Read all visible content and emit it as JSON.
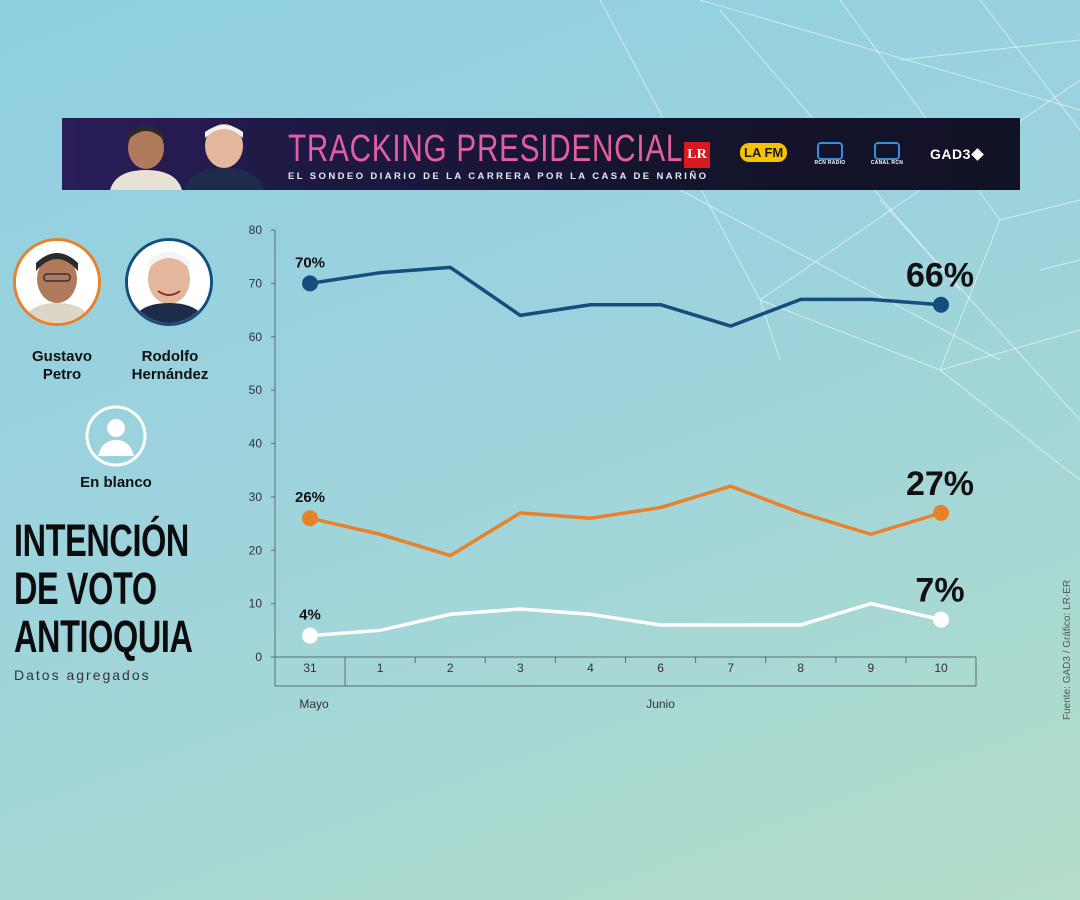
{
  "banner": {
    "title": "TRACKING PRESIDENCIAL",
    "subtitle": "EL SONDEO DIARIO DE LA CARRERA POR LA CASA DE NARIÑO",
    "logos": [
      {
        "name": "lr-logo",
        "text": "LR"
      },
      {
        "name": "lafm-logo",
        "text": "LA FM"
      },
      {
        "name": "rcn-radio-logo",
        "text": "RCN RADIO"
      },
      {
        "name": "canal-rcn-logo",
        "text": "CANAL RCN"
      },
      {
        "name": "gad3-logo",
        "text": "GAD3"
      }
    ]
  },
  "legend": {
    "petro": {
      "name": "Gustavo\nPetro",
      "color": "#e8812a"
    },
    "hernandez": {
      "name": "Rodolfo\nHernández",
      "color": "#154d7c"
    },
    "blanco": {
      "name": "En blanco",
      "color": "#ffffff"
    }
  },
  "heading": {
    "line1": "INTENCIÓN",
    "line2": "DE VOTO",
    "line3": "ANTIOQUIA",
    "sub": "Datos agregados"
  },
  "source": "Fuente: GAD3 / Gráfico: LR-ER",
  "chart_data": {
    "type": "line",
    "categories": [
      "31",
      "1",
      "2",
      "3",
      "4",
      "6",
      "7",
      "8",
      "9",
      "10"
    ],
    "month_labels": [
      {
        "label": "Mayo",
        "span": [
          0,
          0
        ]
      },
      {
        "label": "Junio",
        "span": [
          1,
          9
        ]
      }
    ],
    "ylim": [
      0,
      80
    ],
    "yticks": [
      0,
      10,
      20,
      30,
      40,
      50,
      60,
      70,
      80
    ],
    "grid": false,
    "series": [
      {
        "key": "hernandez",
        "color": "#154d7c",
        "values": [
          70,
          72,
          73,
          64,
          66,
          66,
          62,
          67,
          67,
          66
        ],
        "start_label": "70%",
        "end_label": "66%"
      },
      {
        "key": "petro",
        "color": "#e8812a",
        "values": [
          26,
          23,
          19,
          27,
          26,
          28,
          32,
          27,
          23,
          27
        ],
        "start_label": "26%",
        "end_label": "27%"
      },
      {
        "key": "blanco",
        "color": "#ffffff",
        "values": [
          4,
          5,
          8,
          9,
          8,
          6,
          6,
          6,
          10,
          7
        ],
        "start_label": "4%",
        "end_label": "7%"
      }
    ]
  }
}
